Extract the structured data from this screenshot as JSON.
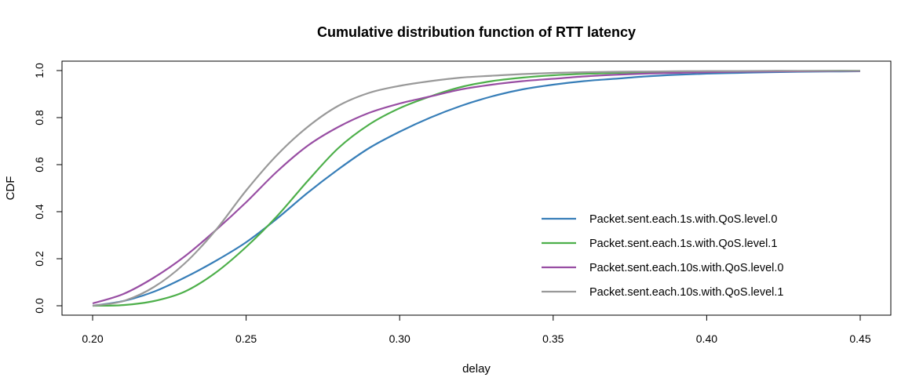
{
  "chart_data": {
    "type": "line",
    "title": "Cumulative distribution function of RTT latency",
    "xlabel": "delay",
    "ylabel": "CDF",
    "xlim": [
      0.2,
      0.45
    ],
    "ylim": [
      0.0,
      1.0
    ],
    "x_ticks": [
      "0.20",
      "0.25",
      "0.30",
      "0.35",
      "0.40",
      "0.45"
    ],
    "y_ticks": [
      "0.0",
      "0.2",
      "0.4",
      "0.6",
      "0.8",
      "1.0"
    ],
    "grid": false,
    "legend_position": "bottom-right",
    "x": [
      0.2,
      0.21,
      0.22,
      0.23,
      0.24,
      0.25,
      0.26,
      0.27,
      0.28,
      0.29,
      0.3,
      0.31,
      0.32,
      0.33,
      0.34,
      0.35,
      0.36,
      0.37,
      0.38,
      0.39,
      0.4,
      0.41,
      0.42,
      0.43,
      0.44,
      0.45
    ],
    "series": [
      {
        "name": "Packet.sent.each.1s.with.QoS.level.0",
        "color": "#377eb8",
        "values": [
          0.0,
          0.02,
          0.06,
          0.12,
          0.19,
          0.27,
          0.37,
          0.48,
          0.58,
          0.67,
          0.74,
          0.8,
          0.85,
          0.89,
          0.92,
          0.94,
          0.955,
          0.965,
          0.975,
          0.982,
          0.987,
          0.99,
          0.993,
          0.995,
          0.996,
          0.997
        ]
      },
      {
        "name": "Packet.sent.each.1s.with.QoS.level.1",
        "color": "#4daf4a",
        "values": [
          0.0,
          0.003,
          0.02,
          0.06,
          0.14,
          0.25,
          0.38,
          0.53,
          0.67,
          0.77,
          0.84,
          0.89,
          0.93,
          0.955,
          0.97,
          0.98,
          0.986,
          0.99,
          0.993,
          0.995,
          0.996,
          0.997,
          0.998,
          0.998,
          0.999,
          0.999
        ]
      },
      {
        "name": "Packet.sent.each.10s.with.QoS.level.0",
        "color": "#984ea3",
        "values": [
          0.01,
          0.05,
          0.12,
          0.21,
          0.32,
          0.44,
          0.57,
          0.68,
          0.76,
          0.82,
          0.86,
          0.89,
          0.92,
          0.94,
          0.955,
          0.965,
          0.975,
          0.982,
          0.987,
          0.99,
          0.993,
          0.995,
          0.996,
          0.997,
          0.998,
          0.998
        ]
      },
      {
        "name": "Packet.sent.each.10s.with.QoS.level.1",
        "color": "#999999",
        "values": [
          0.0,
          0.02,
          0.08,
          0.18,
          0.32,
          0.49,
          0.64,
          0.76,
          0.85,
          0.905,
          0.935,
          0.955,
          0.97,
          0.978,
          0.985,
          0.99,
          0.993,
          0.995,
          0.996,
          0.997,
          0.998,
          0.998,
          0.999,
          0.999,
          0.999,
          0.999
        ]
      }
    ]
  }
}
